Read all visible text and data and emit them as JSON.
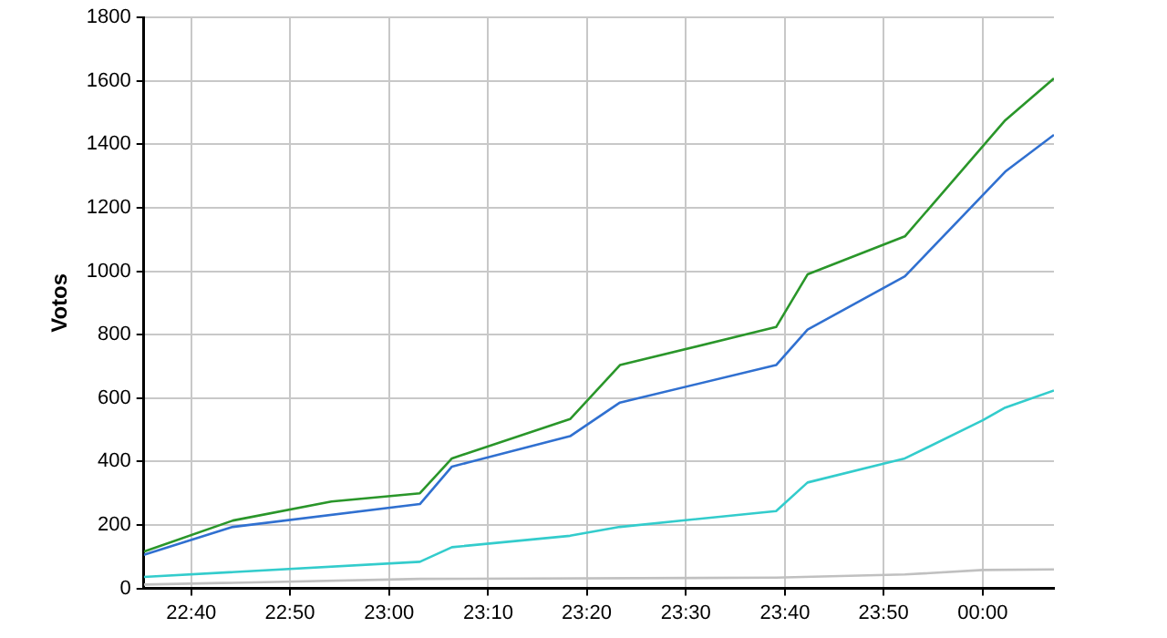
{
  "chart_data": {
    "type": "line",
    "ylabel": "Votos",
    "xlim": [
      22.587,
      24.12
    ],
    "xticks": [
      {
        "value": 22.667,
        "label": "22:40"
      },
      {
        "value": 22.833,
        "label": "22:50"
      },
      {
        "value": 23,
        "label": "23:00"
      },
      {
        "value": 23.167,
        "label": "23:10"
      },
      {
        "value": 23.333,
        "label": "23:20"
      },
      {
        "value": 23.5,
        "label": "23:30"
      },
      {
        "value": 23.667,
        "label": "23:40"
      },
      {
        "value": 23.833,
        "label": "23:50"
      },
      {
        "value": 24,
        "label": "00:00"
      }
    ],
    "ylim": [
      0,
      1800
    ],
    "yticks": [
      0,
      200,
      400,
      600,
      800,
      1000,
      1200,
      1400,
      1600,
      1800
    ],
    "grid": true,
    "legend": false,
    "marker": "none",
    "line_style": "solid",
    "series": [
      {
        "color": "#c0c0c0",
        "x": [
          22.587,
          23.052,
          23.652,
          23.869,
          24.0,
          24.12
        ],
        "values": [
          12,
          30,
          34,
          44,
          58,
          60
        ]
      },
      {
        "color": "#33cccc",
        "x": [
          22.587,
          23.052,
          23.106,
          23.305,
          23.389,
          23.652,
          23.705,
          23.869,
          24.0,
          24.038,
          24.12
        ],
        "values": [
          36,
          84,
          130,
          166,
          194,
          244,
          334,
          410,
          530,
          570,
          624
        ]
      },
      {
        "color": "#3070d0",
        "x": [
          22.587,
          22.737,
          23.052,
          23.106,
          23.305,
          23.389,
          23.652,
          23.705,
          23.869,
          24.038,
          24.12
        ],
        "values": [
          106,
          194,
          266,
          384,
          480,
          586,
          704,
          816,
          984,
          1314,
          1430
        ]
      },
      {
        "color": "#2a962a",
        "x": [
          22.587,
          22.737,
          22.903,
          23.052,
          23.106,
          23.305,
          23.389,
          23.652,
          23.705,
          23.869,
          24.038,
          24.12
        ],
        "values": [
          116,
          214,
          274,
          300,
          410,
          534,
          704,
          824,
          990,
          1110,
          1476,
          1608
        ]
      }
    ]
  }
}
